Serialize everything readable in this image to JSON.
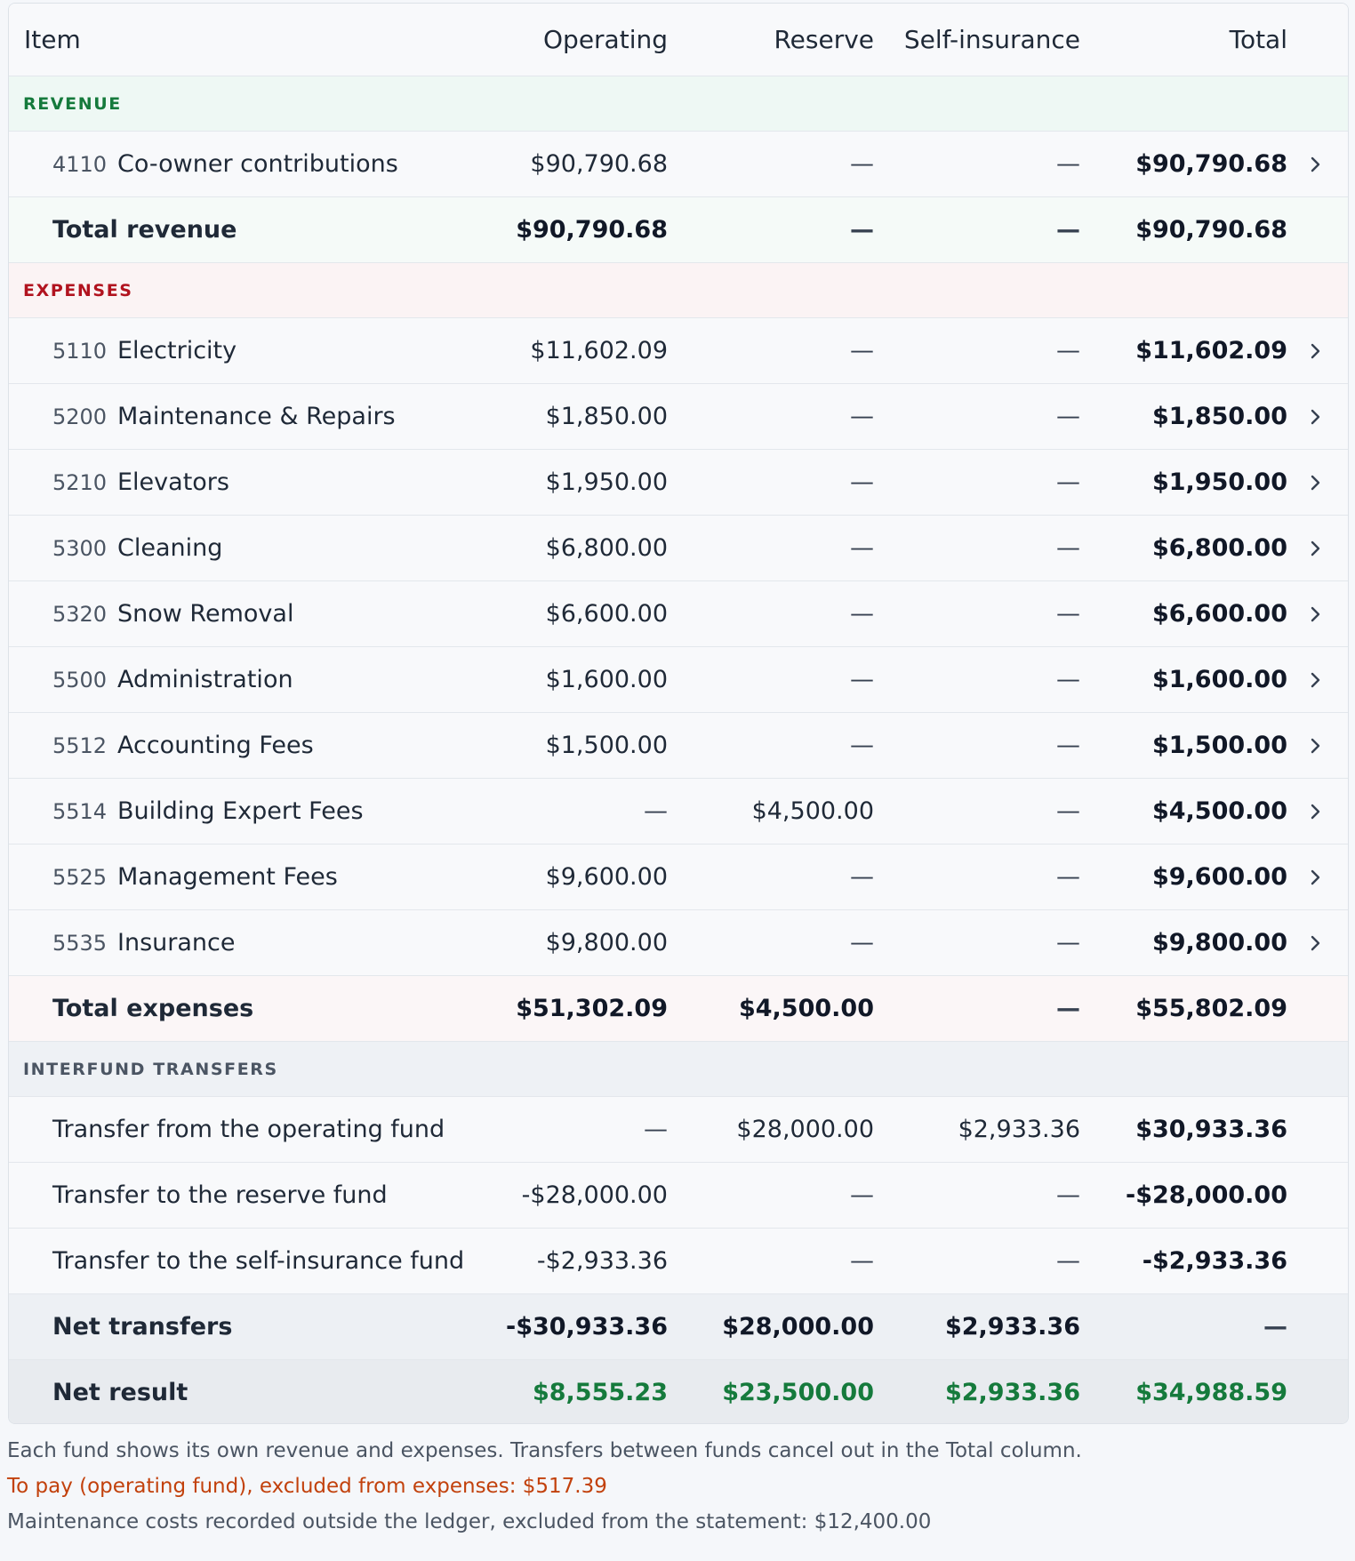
{
  "header": {
    "item": "Item",
    "operating": "Operating",
    "reserve": "Reserve",
    "self_insurance": "Self-insurance",
    "total": "Total"
  },
  "revenue": {
    "section_label": "REVENUE",
    "rows": [
      {
        "code": "4110",
        "name": "Co-owner contributions",
        "operating": "$90,790.68",
        "reserve": "—",
        "self_insurance": "—",
        "total": "$90,790.68"
      }
    ],
    "total": {
      "label": "Total revenue",
      "operating": "$90,790.68",
      "reserve": "—",
      "self_insurance": "—",
      "total": "$90,790.68"
    }
  },
  "expenses": {
    "section_label": "EXPENSES",
    "rows": [
      {
        "code": "5110",
        "name": "Electricity",
        "operating": "$11,602.09",
        "reserve": "—",
        "self_insurance": "—",
        "total": "$11,602.09"
      },
      {
        "code": "5200",
        "name": "Maintenance & Repairs",
        "operating": "$1,850.00",
        "reserve": "—",
        "self_insurance": "—",
        "total": "$1,850.00"
      },
      {
        "code": "5210",
        "name": "Elevators",
        "operating": "$1,950.00",
        "reserve": "—",
        "self_insurance": "—",
        "total": "$1,950.00"
      },
      {
        "code": "5300",
        "name": "Cleaning",
        "operating": "$6,800.00",
        "reserve": "—",
        "self_insurance": "—",
        "total": "$6,800.00"
      },
      {
        "code": "5320",
        "name": "Snow Removal",
        "operating": "$6,600.00",
        "reserve": "—",
        "self_insurance": "—",
        "total": "$6,600.00"
      },
      {
        "code": "5500",
        "name": "Administration",
        "operating": "$1,600.00",
        "reserve": "—",
        "self_insurance": "—",
        "total": "$1,600.00"
      },
      {
        "code": "5512",
        "name": "Accounting Fees",
        "operating": "$1,500.00",
        "reserve": "—",
        "self_insurance": "—",
        "total": "$1,500.00"
      },
      {
        "code": "5514",
        "name": "Building Expert Fees",
        "operating": "—",
        "reserve": "$4,500.00",
        "self_insurance": "—",
        "total": "$4,500.00"
      },
      {
        "code": "5525",
        "name": "Management Fees",
        "operating": "$9,600.00",
        "reserve": "—",
        "self_insurance": "—",
        "total": "$9,600.00"
      },
      {
        "code": "5535",
        "name": "Insurance",
        "operating": "$9,800.00",
        "reserve": "—",
        "self_insurance": "—",
        "total": "$9,800.00"
      }
    ],
    "total": {
      "label": "Total expenses",
      "operating": "$51,302.09",
      "reserve": "$4,500.00",
      "self_insurance": "—",
      "total": "$55,802.09"
    }
  },
  "transfers": {
    "section_label": "INTERFUND TRANSFERS",
    "rows": [
      {
        "name": "Transfer from the operating fund",
        "operating": "—",
        "reserve": "$28,000.00",
        "self_insurance": "$2,933.36",
        "total": "$30,933.36"
      },
      {
        "name": "Transfer to the reserve fund",
        "operating": "-$28,000.00",
        "reserve": "—",
        "self_insurance": "—",
        "total": "-$28,000.00"
      },
      {
        "name": "Transfer to the self-insurance fund",
        "operating": "-$2,933.36",
        "reserve": "—",
        "self_insurance": "—",
        "total": "-$2,933.36"
      }
    ],
    "total": {
      "label": "Net transfers",
      "operating": "-$30,933.36",
      "reserve": "$28,000.00",
      "self_insurance": "$2,933.36",
      "total": "—"
    }
  },
  "net_result": {
    "label": "Net result",
    "operating": "$8,555.23",
    "reserve": "$23,500.00",
    "self_insurance": "$2,933.36",
    "total": "$34,988.59"
  },
  "notes": {
    "line1": "Each fund shows its own revenue and expenses. Transfers between funds cancel out in the Total column.",
    "line2": "To pay (operating fund), excluded from expenses: $517.39",
    "line3": "Maintenance costs recorded outside the ledger, excluded from the statement: $12,400.00"
  },
  "icons": {
    "row_link": "chevron-right-icon"
  },
  "colors": {
    "revenue": "#157a3c",
    "expenses": "#b1131f",
    "positive": "#157a3c",
    "warning": "#c2410c"
  }
}
